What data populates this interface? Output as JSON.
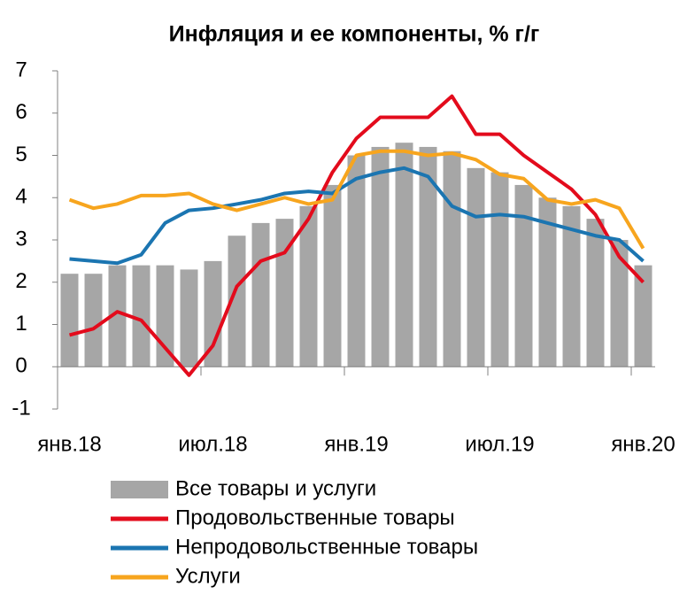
{
  "chart_data": {
    "type": "bar",
    "title": "Инфляция и ее компоненты, % г/г",
    "categories": [
      "янв.18",
      null,
      null,
      null,
      null,
      null,
      "июл.18",
      null,
      null,
      null,
      null,
      null,
      "янв.19",
      null,
      null,
      null,
      null,
      null,
      "июл.19",
      null,
      null,
      null,
      null,
      null,
      "янв.20"
    ],
    "series": [
      {
        "name": "Все товары и услуги",
        "type": "bar",
        "color": "#a6a6a6",
        "values": [
          2.2,
          2.2,
          2.4,
          2.4,
          2.4,
          2.3,
          2.5,
          3.1,
          3.4,
          3.5,
          3.8,
          4.3,
          5.0,
          5.2,
          5.3,
          5.2,
          5.1,
          4.7,
          4.6,
          4.3,
          4.0,
          3.8,
          3.5,
          3.0,
          2.4
        ]
      },
      {
        "name": "Продовольственные товары",
        "type": "line",
        "color": "#e30b1c",
        "values": [
          0.75,
          0.9,
          1.3,
          1.1,
          0.45,
          -0.2,
          0.5,
          1.9,
          2.5,
          2.7,
          3.5,
          4.6,
          5.4,
          5.9,
          5.9,
          5.9,
          6.4,
          5.5,
          5.5,
          5.0,
          4.6,
          4.2,
          3.6,
          2.6,
          2.0
        ]
      },
      {
        "name": "Непродовольственные товары",
        "type": "line",
        "color": "#1b75b1",
        "values": [
          2.55,
          2.5,
          2.45,
          2.65,
          3.4,
          3.7,
          3.75,
          3.85,
          3.95,
          4.1,
          4.15,
          4.1,
          4.45,
          4.6,
          4.7,
          4.5,
          3.8,
          3.55,
          3.6,
          3.55,
          3.4,
          3.25,
          3.1,
          3.0,
          2.5
        ]
      },
      {
        "name": "Услуги",
        "type": "line",
        "color": "#f7a51e",
        "values": [
          3.95,
          3.75,
          3.85,
          4.05,
          4.05,
          4.1,
          3.85,
          3.7,
          3.85,
          4.0,
          3.85,
          3.95,
          5.0,
          5.1,
          5.1,
          5.0,
          5.05,
          4.9,
          4.55,
          4.45,
          3.95,
          3.85,
          3.95,
          3.75,
          2.8
        ]
      }
    ],
    "ylim": [
      -1,
      7
    ],
    "yticks": [
      -1,
      0,
      1,
      2,
      3,
      4,
      5,
      6,
      7
    ],
    "grid": false,
    "legend": "bottom"
  }
}
